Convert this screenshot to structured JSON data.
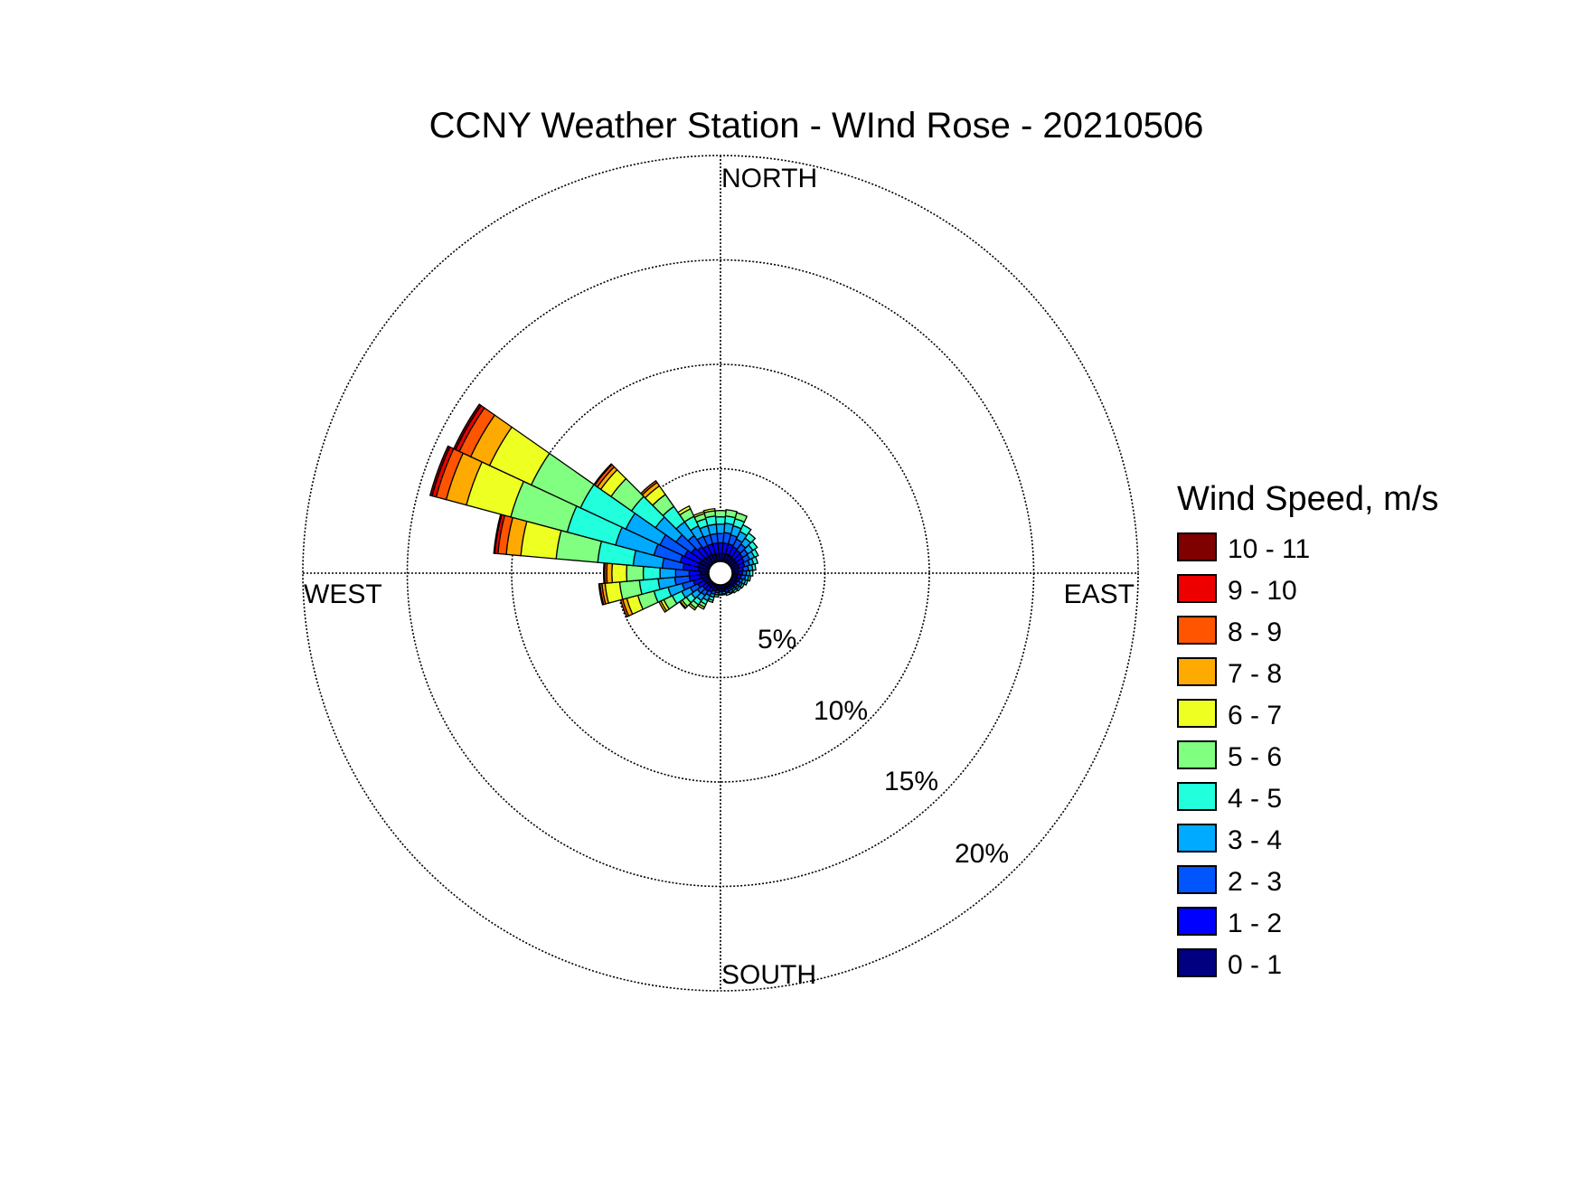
{
  "chart_data": {
    "type": "wind-rose",
    "title": "CCNY Weather Station - WInd Rose - 20210506",
    "directions": {
      "north": "NORTH",
      "east": "EAST",
      "south": "SOUTH",
      "west": "WEST"
    },
    "ring_labels": [
      "5%",
      "10%",
      "15%",
      "20%"
    ],
    "ring_values": [
      5,
      10,
      15,
      20
    ],
    "rmax": 20,
    "center_hole_pct": 0.6,
    "legend": {
      "title": "Wind Speed, m/s",
      "placement": "right",
      "bins": [
        {
          "label": "10 - 11",
          "color": "#800000"
        },
        {
          "label": "9 - 10",
          "color": "#ee0000"
        },
        {
          "label": "8 - 9",
          "color": "#ff5500"
        },
        {
          "label": "7 - 8",
          "color": "#ffaa00"
        },
        {
          "label": "6 - 7",
          "color": "#eeff22"
        },
        {
          "label": "5 - 6",
          "color": "#80ff80"
        },
        {
          "label": "4 - 5",
          "color": "#22ffdd"
        },
        {
          "label": "3 - 4",
          "color": "#00aaff"
        },
        {
          "label": "2 - 3",
          "color": "#0055ff"
        },
        {
          "label": "1 - 2",
          "color": "#0000ff"
        },
        {
          "label": "0 - 1",
          "color": "#000080"
        }
      ]
    },
    "sector_width_deg": 10,
    "speed_bins_order": [
      "0 - 1",
      "1 - 2",
      "2 - 3",
      "3 - 4",
      "4 - 5",
      "5 - 6",
      "6 - 7",
      "7 - 8",
      "8 - 9",
      "9 - 10",
      "10 - 11"
    ],
    "sectors": [
      {
        "direction_deg": 0,
        "cumulative_pct": [
          0.35,
          0.85,
          1.3,
          1.75,
          2.1,
          2.4
        ]
      },
      {
        "direction_deg": 10,
        "cumulative_pct": [
          0.35,
          0.85,
          1.35,
          1.8,
          2.15,
          2.45
        ]
      },
      {
        "direction_deg": 20,
        "cumulative_pct": [
          0.35,
          0.85,
          1.3,
          1.75,
          2.1,
          2.4
        ]
      },
      {
        "direction_deg": 30,
        "cumulative_pct": [
          0.35,
          0.8,
          1.2,
          1.6,
          1.95
        ]
      },
      {
        "direction_deg": 40,
        "cumulative_pct": [
          0.3,
          0.75,
          1.1,
          1.45,
          1.75
        ]
      },
      {
        "direction_deg": 50,
        "cumulative_pct": [
          0.3,
          0.7,
          1.0,
          1.3,
          1.55
        ]
      },
      {
        "direction_deg": 60,
        "cumulative_pct": [
          0.3,
          0.65,
          0.95,
          1.2,
          1.4
        ]
      },
      {
        "direction_deg": 70,
        "cumulative_pct": [
          0.3,
          0.6,
          0.85,
          1.05,
          1.25
        ]
      },
      {
        "direction_deg": 80,
        "cumulative_pct": [
          0.25,
          0.5,
          0.75,
          0.95,
          1.1
        ]
      },
      {
        "direction_deg": 90,
        "cumulative_pct": [
          0.25,
          0.45,
          0.65,
          0.8,
          0.95
        ]
      },
      {
        "direction_deg": 100,
        "cumulative_pct": [
          0.2,
          0.4,
          0.6,
          0.75,
          0.85
        ]
      },
      {
        "direction_deg": 110,
        "cumulative_pct": [
          0.2,
          0.35,
          0.5,
          0.65,
          0.75
        ]
      },
      {
        "direction_deg": 120,
        "cumulative_pct": [
          0.2,
          0.3,
          0.45,
          0.55,
          0.65
        ]
      },
      {
        "direction_deg": 130,
        "cumulative_pct": [
          0.2,
          0.3,
          0.4,
          0.5,
          0.6
        ]
      },
      {
        "direction_deg": 140,
        "cumulative_pct": [
          0.15,
          0.25,
          0.35,
          0.45,
          0.55
        ]
      },
      {
        "direction_deg": 150,
        "cumulative_pct": [
          0.15,
          0.25,
          0.35,
          0.45,
          0.5
        ]
      },
      {
        "direction_deg": 160,
        "cumulative_pct": [
          0.15,
          0.25,
          0.35,
          0.4,
          0.5
        ]
      },
      {
        "direction_deg": 170,
        "cumulative_pct": [
          0.15,
          0.25,
          0.3,
          0.4,
          0.45
        ]
      },
      {
        "direction_deg": 180,
        "cumulative_pct": [
          0.15,
          0.25,
          0.3,
          0.4,
          0.45
        ]
      },
      {
        "direction_deg": 190,
        "cumulative_pct": [
          0.15,
          0.25,
          0.35,
          0.45,
          0.55
        ]
      },
      {
        "direction_deg": 200,
        "cumulative_pct": [
          0.15,
          0.3,
          0.45,
          0.6,
          0.75,
          0.85
        ]
      },
      {
        "direction_deg": 210,
        "cumulative_pct": [
          0.2,
          0.4,
          0.6,
          0.85,
          1.05,
          1.2,
          1.3
        ]
      },
      {
        "direction_deg": 220,
        "cumulative_pct": [
          0.2,
          0.45,
          0.7,
          1.0,
          1.25,
          1.45,
          1.55
        ]
      },
      {
        "direction_deg": 230,
        "cumulative_pct": [
          0.2,
          0.45,
          0.75,
          1.1,
          1.4,
          1.65,
          1.75,
          1.8
        ]
      },
      {
        "direction_deg": 240,
        "cumulative_pct": [
          0.25,
          0.6,
          1.0,
          1.45,
          1.95,
          2.4,
          2.55,
          2.65
        ]
      },
      {
        "direction_deg": 250,
        "cumulative_pct": [
          0.3,
          0.75,
          1.3,
          2.0,
          2.7,
          3.5,
          4.05,
          4.25,
          4.35
        ]
      },
      {
        "direction_deg": 260,
        "cumulative_pct": [
          0.35,
          0.9,
          1.6,
          2.4,
          3.3,
          4.25,
          4.95,
          5.1,
          5.2,
          5.25
        ]
      },
      {
        "direction_deg": 270,
        "cumulative_pct": [
          0.35,
          0.9,
          1.55,
          2.3,
          3.1,
          3.9,
          4.6,
          4.85,
          4.95,
          5.0
        ]
      },
      {
        "direction_deg": 280,
        "cumulative_pct": [
          0.45,
          1.2,
          2.2,
          3.6,
          5.3,
          7.3,
          9.0,
          9.7,
          10.1,
          10.25,
          10.3
        ]
      },
      {
        "direction_deg": 290,
        "cumulative_pct": [
          0.5,
          1.4,
          2.7,
          4.6,
          7.0,
          9.8,
          12.0,
          13.0,
          13.5,
          13.7,
          13.8
        ]
      },
      {
        "direction_deg": 300,
        "cumulative_pct": [
          0.5,
          1.3,
          2.6,
          4.4,
          6.8,
          9.4,
          11.6,
          12.6,
          13.2,
          13.4,
          13.5
        ]
      },
      {
        "direction_deg": 310,
        "cumulative_pct": [
          0.45,
          1.1,
          2.0,
          3.2,
          4.6,
          5.8,
          6.4,
          6.6,
          6.75,
          6.8
        ]
      },
      {
        "direction_deg": 320,
        "cumulative_pct": [
          0.4,
          0.95,
          1.6,
          2.4,
          3.3,
          4.0,
          4.5,
          4.7,
          4.8
        ]
      },
      {
        "direction_deg": 330,
        "cumulative_pct": [
          0.4,
          0.85,
          1.35,
          1.9,
          2.4,
          2.8,
          2.95
        ]
      },
      {
        "direction_deg": 340,
        "cumulative_pct": [
          0.35,
          0.85,
          1.3,
          1.75,
          2.1,
          2.35,
          2.45
        ]
      },
      {
        "direction_deg": 350,
        "cumulative_pct": [
          0.35,
          0.85,
          1.3,
          1.75,
          2.15,
          2.4,
          2.5
        ]
      }
    ]
  }
}
